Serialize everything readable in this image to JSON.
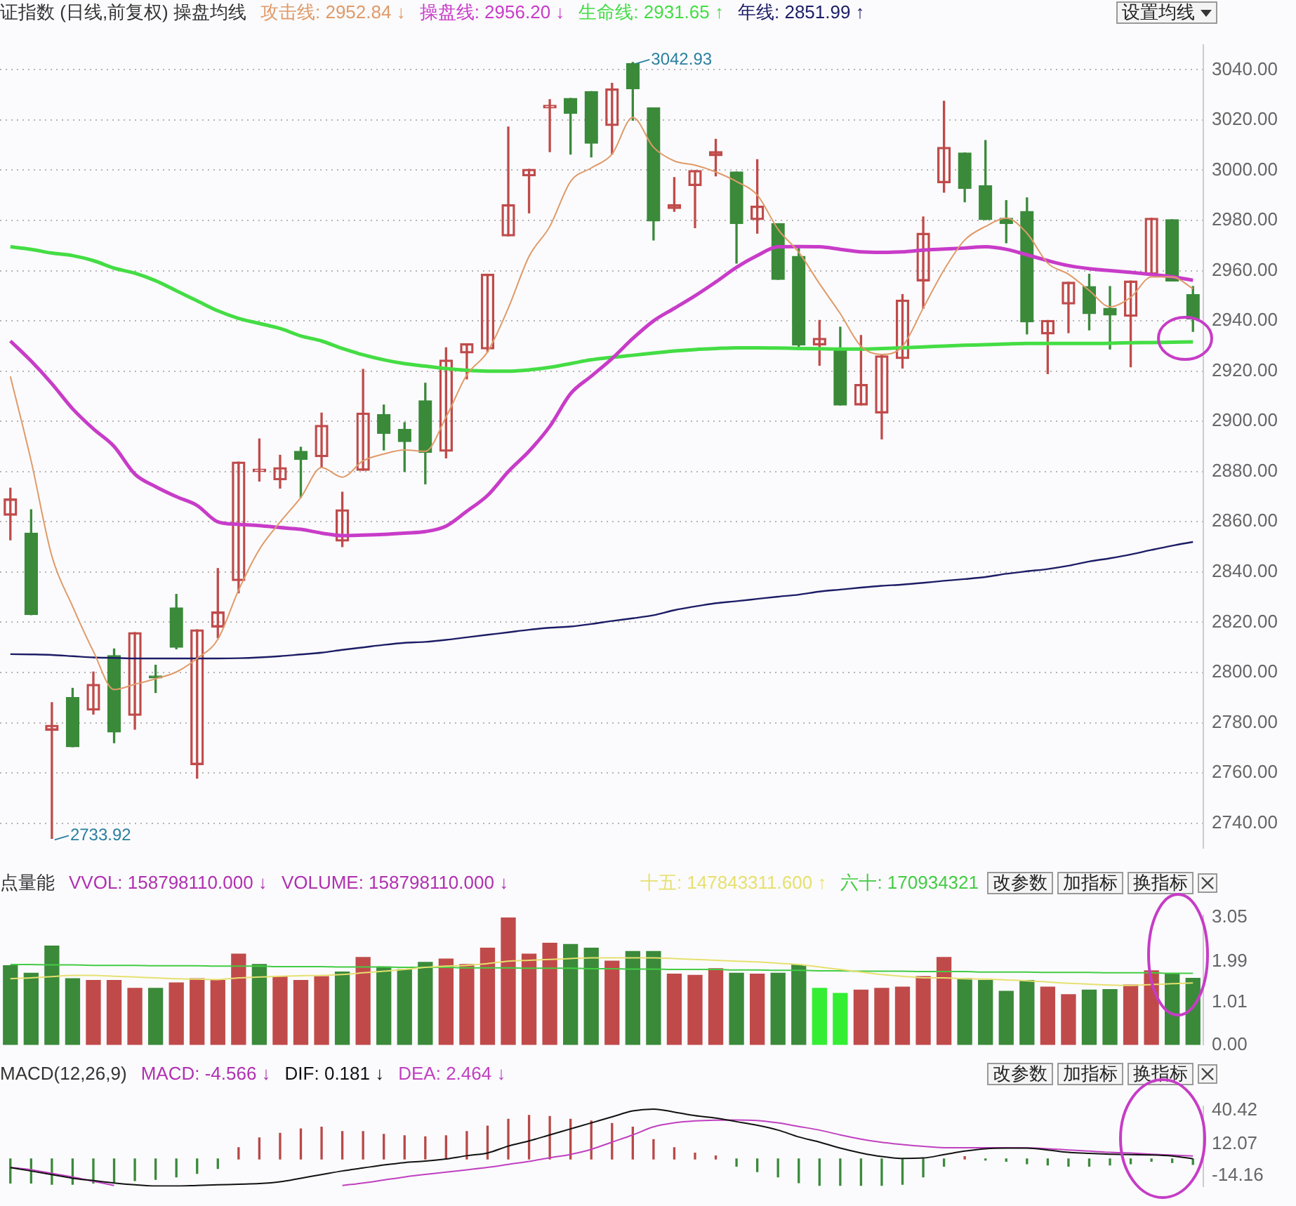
{
  "chart_data": [
    {
      "type": "candlestick",
      "title": "证指数 (日线,前复权) 操盘均线",
      "legend": "top left",
      "tick_labels": "y",
      "grid": "y",
      "categories": [
        null,
        null,
        null,
        null,
        null,
        null,
        null,
        null,
        null,
        null,
        null,
        null,
        null,
        null,
        null,
        null,
        null,
        null,
        null,
        null,
        null,
        null,
        null,
        null,
        null,
        null,
        null,
        null,
        null,
        null,
        null,
        null,
        null,
        null,
        null,
        null,
        null,
        null,
        null,
        null,
        null,
        null,
        null,
        null,
        null,
        null,
        null,
        null,
        null,
        null,
        null,
        null,
        null,
        null,
        null,
        null,
        null,
        null
      ],
      "ohlc": [
        [
          2862.6,
          2873.4,
          2852.8,
          2869.1
        ],
        [
          2855.5,
          2864.8,
          2823,
          2823
        ],
        [
          2777,
          2788,
          2733.92,
          2779
        ],
        [
          2790,
          2793.7,
          2770.4,
          2770.4
        ],
        [
          2785,
          2800.2,
          2783.4,
          2795.3
        ],
        [
          2806.7,
          2809.4,
          2772,
          2776.3
        ],
        [
          2782.9,
          2815.9,
          2777.4,
          2815.9
        ],
        [
          2798.6,
          2802.9,
          2792,
          2797.8
        ],
        [
          2825.7,
          2831.1,
          2809.4,
          2810
        ],
        [
          2763.3,
          2817,
          2757.9,
          2817
        ],
        [
          2818.1,
          2841.4,
          2813.8,
          2824.1
        ],
        [
          2836.6,
          2883.8,
          2831.7,
          2883.8
        ],
        [
          2880,
          2893,
          2876.2,
          2881
        ],
        [
          2876.7,
          2886.5,
          2873.4,
          2881.6
        ],
        [
          2888.1,
          2889.7,
          2869.7,
          2884.8
        ],
        [
          2885.9,
          2903.3,
          2881.6,
          2898.4
        ],
        [
          2852.3,
          2871.8,
          2850.1,
          2864.8
        ],
        [
          2880.5,
          2920.7,
          2880.5,
          2903.3
        ],
        [
          2902.7,
          2906.5,
          2888.6,
          2895.2
        ],
        [
          2896.8,
          2899.5,
          2880,
          2891.9
        ],
        [
          2908.2,
          2915.2,
          2875.1,
          2887.6
        ],
        [
          2888.1,
          2929.3,
          2885.4,
          2924.4
        ],
        [
          2927.2,
          2930.9,
          2916.9,
          2930.9
        ],
        [
          2928.8,
          2958.6,
          2927.7,
          2958.6
        ],
        [
          2973.8,
          3017.2,
          2973.8,
          2986.3
        ],
        [
          2997.7,
          3000.4,
          2983,
          3000.4
        ],
        [
          3024.8,
          3028.1,
          3007.4,
          3025.9
        ],
        [
          3028.6,
          3028.6,
          3006.4,
          3022.6
        ],
        [
          3031.3,
          3031.3,
          3005.3,
          3010.7
        ],
        [
          3017.8,
          3034.6,
          3006.4,
          3032.4
        ],
        [
          3042.5,
          3042.93,
          3019.9,
          3032.4
        ],
        [
          3024.8,
          3024.8,
          2972.2,
          2979.8
        ],
        [
          2984.7,
          2997.1,
          2983.6,
          2986.3
        ],
        [
          2993.9,
          2999.9,
          2977.1,
          2999.9
        ],
        [
          3005.8,
          3012.3,
          2997.7,
          3007.4
        ],
        [
          2999.3,
          2999.3,
          2963,
          2978.7
        ],
        [
          2980.3,
          3004.2,
          2974.9,
          2985.7
        ],
        [
          2978.7,
          2978.7,
          2956.5,
          2956.5
        ],
        [
          2965.7,
          2970,
          2929.3,
          2930.4
        ],
        [
          2930.4,
          2940.2,
          2922.3,
          2933.1
        ],
        [
          2928.8,
          2937.5,
          2906.5,
          2906.5
        ],
        [
          2906.5,
          2934.2,
          2906.5,
          2914.7
        ],
        [
          2903.3,
          2926.6,
          2893,
          2926.1
        ],
        [
          2925,
          2950.5,
          2921.2,
          2948.3
        ],
        [
          2955.9,
          2981.4,
          2945,
          2974.9
        ],
        [
          2995,
          3027.5,
          2991.2,
          3009.1
        ],
        [
          3006.9,
          3006.9,
          2987.4,
          2992.8
        ],
        [
          2993.9,
          3011.8,
          2980.3,
          2980.3
        ],
        [
          2980.9,
          2987.9,
          2971.1,
          2978.7
        ],
        [
          2983.6,
          2989,
          2934.8,
          2939.6
        ],
        [
          2934.8,
          2940.2,
          2919,
          2940.2
        ],
        [
          2946.7,
          2955.4,
          2935.3,
          2955.4
        ],
        [
          2953.7,
          2958.6,
          2936.4,
          2942.9
        ],
        [
          2945,
          2953.7,
          2928.8,
          2942.3
        ],
        [
          2941.8,
          2955.9,
          2921.7,
          2955.9
        ],
        [
          2958.6,
          2980.9,
          2958.6,
          2980.9
        ],
        [
          2980.3,
          2980.3,
          2955.9,
          2955.9
        ],
        [
          2950.5,
          2953.7,
          2935.8,
          2940.7
        ]
      ],
      "colors": [
        "#c04a4a",
        "#3a8a3a",
        "#c04a4a",
        "#3a8a3a",
        "#c04a4a",
        "#3a8a3a",
        "#c04a4a",
        "#3a8a3a",
        "#3a8a3a",
        "#c04a4a",
        "#c04a4a",
        "#c04a4a",
        "#c04a4a",
        "#c04a4a",
        "#3a8a3a",
        "#c04a4a",
        "#c04a4a",
        "#c04a4a",
        "#3a8a3a",
        "#3a8a3a",
        "#3a8a3a",
        "#c04a4a",
        "#c04a4a",
        "#c04a4a",
        "#c04a4a",
        "#c04a4a",
        "#c04a4a",
        "#3a8a3a",
        "#3a8a3a",
        "#c04a4a",
        "#3a8a3a",
        "#3a8a3a",
        "#c04a4a",
        "#c04a4a",
        "#c04a4a",
        "#3a8a3a",
        "#c04a4a",
        "#3a8a3a",
        "#3a8a3a",
        "#c04a4a",
        "#3a8a3a",
        "#c04a4a",
        "#c04a4a",
        "#c04a4a",
        "#c04a4a",
        "#c04a4a",
        "#3a8a3a",
        "#3a8a3a",
        "#3a8a3a",
        "#3a8a3a",
        "#c04a4a",
        "#c04a4a",
        "#3a8a3a",
        "#3a8a3a",
        "#c04a4a",
        "#c04a4a",
        "#3a8a3a",
        "#3a8a3a"
      ],
      "series": [
        {
          "name": "攻击线: 2952.84 ↓",
          "type": "line",
          "color": "#e09a68",
          "values": [
            2917.9,
            2884.3,
            2846.3,
            2826.3,
            2808.4,
            2793.2,
            2795.3,
            2797.5,
            2800.2,
            2805.6,
            2813.2,
            2832.8,
            2849,
            2859.9,
            2869.7,
            2881.6,
            2877.8,
            2884.3,
            2887,
            2888.6,
            2888.1,
            2901.7,
            2918.5,
            2927.7,
            2945.1,
            2965.7,
            2977.6,
            2995.5,
            3000.9,
            3006.4,
            3021,
            3009.1,
            3003.7,
            3002,
            2999.3,
            2995.5,
            2990.1,
            2976.5,
            2967.3,
            2954.8,
            2942.9,
            2929.9,
            2926.6,
            2929.9,
            2945.1,
            2960.3,
            2972.2,
            2977.6,
            2980.9,
            2974.9,
            2963,
            2958.6,
            2952.1,
            2945.6,
            2949.4,
            2957.5,
            2957.5,
            2952.84
          ]
        },
        {
          "name": "操盘线: 2956.20 ↓",
          "type": "line",
          "color": "#c83cc8",
          "values": [
            2932,
            2924,
            2915,
            2905,
            2897,
            2890,
            2879,
            2874,
            2870,
            2866.5,
            2860,
            2859,
            2858.5,
            2857.7,
            2857,
            2855.5,
            2854.5,
            2854.7,
            2855,
            2855.5,
            2856.1,
            2858.3,
            2864.2,
            2870.5,
            2880,
            2888.1,
            2898,
            2911,
            2918,
            2925,
            2933,
            2940,
            2945,
            2950,
            2955.5,
            2961.3,
            2966,
            2969.5,
            2969.6,
            2969.5,
            2968.5,
            2967.5,
            2967.3,
            2967.5,
            2968.2,
            2968.6,
            2969,
            2969.5,
            2968.5,
            2966.3,
            2964,
            2962,
            2960.8,
            2960,
            2959.3,
            2958.5,
            2957.6,
            2956.2
          ]
        },
        {
          "name": "生命线: 2931.65 ↑",
          "type": "line",
          "color": "#44dd44",
          "values": [
            2969.5,
            2968.5,
            2967,
            2966,
            2964,
            2961,
            2959,
            2956,
            2952,
            2948,
            2944,
            2941,
            2939,
            2937,
            2934,
            2932,
            2929,
            2926.5,
            2924.5,
            2923,
            2922,
            2921,
            2920.3,
            2920,
            2920,
            2920.5,
            2921.5,
            2923,
            2924.5,
            2925.5,
            2926.3,
            2927.2,
            2928,
            2928.6,
            2929,
            2929.3,
            2929.3,
            2929.2,
            2929,
            2928.9,
            2928.8,
            2928.8,
            2929,
            2929.3,
            2929.6,
            2930,
            2930.3,
            2930.5,
            2930.8,
            2931,
            2931,
            2931,
            2931,
            2931.1,
            2931.3,
            2931.4,
            2931.5,
            2931.65
          ]
        },
        {
          "name": "年线: 2851.99 ↑",
          "type": "line",
          "color": "#1c1c66",
          "values": [
            2807.3,
            2807.2,
            2807,
            2806.5,
            2806,
            2805.8,
            2805.6,
            2805.6,
            2805.6,
            2805.6,
            2805.6,
            2805.7,
            2806,
            2806.5,
            2807.2,
            2807.9,
            2809,
            2810,
            2811,
            2811.8,
            2812.2,
            2813,
            2814,
            2815,
            2816,
            2817,
            2817.8,
            2818.3,
            2819.3,
            2820.5,
            2821.6,
            2822.8,
            2824.8,
            2826.3,
            2827.6,
            2828.4,
            2829.3,
            2830.2,
            2831,
            2832.2,
            2833,
            2833.8,
            2834.5,
            2835,
            2835.7,
            2836.5,
            2837.2,
            2838,
            2839.3,
            2840.3,
            2841.2,
            2842.5,
            2844.2,
            2845.5,
            2847,
            2848.8,
            2850.5,
            2851.99
          ]
        }
      ],
      "ylim": [
        2730,
        3050
      ],
      "yticks": [
        {
          "value": 2740,
          "label": "2740.00"
        },
        {
          "value": 2760,
          "label": "2760.00"
        },
        {
          "value": 2780,
          "label": "2780.00"
        },
        {
          "value": 2800,
          "label": "2800.00"
        },
        {
          "value": 2820,
          "label": "2820.00"
        },
        {
          "value": 2840,
          "label": "2840.00"
        },
        {
          "value": 2860,
          "label": "2860.00"
        },
        {
          "value": 2880,
          "label": "2880.00"
        },
        {
          "value": 2900,
          "label": "2900.00"
        },
        {
          "value": 2920,
          "label": "2920.00"
        },
        {
          "value": 2940,
          "label": "2940.00"
        },
        {
          "value": 2960,
          "label": "2960.00"
        },
        {
          "value": 2980,
          "label": "2980.00"
        },
        {
          "value": 3000,
          "label": "3000.00"
        },
        {
          "value": 3020,
          "label": "3020.00"
        },
        {
          "value": 3040,
          "label": "3040.00"
        }
      ],
      "annotations": [
        "3042.93",
        "2733.92",
        "设置均线"
      ]
    },
    {
      "type": "bar",
      "title": "点量能",
      "legend": "top right",
      "tick_labels": "y",
      "categories": [
        null,
        null,
        null,
        null,
        null,
        null,
        null,
        null,
        null,
        null,
        null,
        null,
        null,
        null,
        null,
        null,
        null,
        null,
        null,
        null,
        null,
        null,
        null,
        null,
        null,
        null,
        null,
        null,
        null,
        null,
        null,
        null,
        null,
        null,
        null,
        null,
        null,
        null,
        null,
        null,
        null,
        null,
        null,
        null,
        null,
        null,
        null,
        null,
        null,
        null,
        null,
        null,
        null,
        null,
        null,
        null,
        null,
        null
      ],
      "series": [
        {
          "type": "bar",
          "colors": [
            "#3a8a3a",
            "#3a8a3a",
            "#3a8a3a",
            "#3a8a3a",
            "#c04a4a",
            "#c04a4a",
            "#c04a4a",
            "#3a8a3a",
            "#c04a4a",
            "#c04a4a",
            "#c04a4a",
            "#c04a4a",
            "#3a8a3a",
            "#c04a4a",
            "#c04a4a",
            "#c04a4a",
            "#3a8a3a",
            "#c04a4a",
            "#3a8a3a",
            "#3a8a3a",
            "#3a8a3a",
            "#c04a4a",
            "#c04a4a",
            "#c04a4a",
            "#c04a4a",
            "#c04a4a",
            "#c04a4a",
            "#3a8a3a",
            "#3a8a3a",
            "#c04a4a",
            "#3a8a3a",
            "#3a8a3a",
            "#c04a4a",
            "#c04a4a",
            "#c04a4a",
            "#3a8a3a",
            "#c04a4a",
            "#3a8a3a",
            "#3a8a3a",
            "#33ee33",
            "#33ee33",
            "#c04a4a",
            "#c04a4a",
            "#c04a4a",
            "#c04a4a",
            "#c04a4a",
            "#3a8a3a",
            "#3a8a3a",
            "#3a8a3a",
            "#3a8a3a",
            "#c04a4a",
            "#c04a4a",
            "#3a8a3a",
            "#3a8a3a",
            "#c04a4a",
            "#c04a4a",
            "#3a8a3a",
            "#3a8a3a"
          ],
          "values": [
            1.89,
            1.71,
            2.36,
            1.58,
            1.54,
            1.54,
            1.35,
            1.35,
            1.48,
            1.58,
            1.54,
            2.17,
            1.92,
            1.63,
            1.54,
            1.63,
            1.74,
            2.09,
            1.86,
            1.8,
            1.97,
            2.05,
            1.92,
            2.31,
            3.03,
            2.17,
            2.43,
            2.4,
            2.31,
            2,
            2.23,
            2.23,
            1.69,
            1.66,
            1.82,
            1.71,
            1.69,
            1.71,
            1.91,
            1.35,
            1.23,
            1.31,
            1.35,
            1.38,
            1.63,
            2.09,
            1.58,
            1.54,
            1.28,
            1.54,
            1.38,
            1.2,
            1.31,
            1.32,
            1.43,
            1.77,
            1.69,
            1.59
          ]
        },
        {
          "name": "十五: 147843311.600 ↑",
          "type": "line",
          "color": "#e6e070",
          "values": [
            1.58,
            1.6,
            1.63,
            1.66,
            1.66,
            1.64,
            1.62,
            1.6,
            1.58,
            1.57,
            1.56,
            1.6,
            1.62,
            1.64,
            1.65,
            1.66,
            1.68,
            1.72,
            1.76,
            1.8,
            1.85,
            1.88,
            1.9,
            1.94,
            2,
            2.02,
            2.04,
            2.06,
            2.08,
            2.08,
            2.08,
            2.08,
            2.06,
            2.04,
            2.02,
            2,
            1.98,
            1.95,
            1.92,
            1.86,
            1.8,
            1.74,
            1.68,
            1.64,
            1.6,
            1.6,
            1.58,
            1.57,
            1.55,
            1.53,
            1.5,
            1.47,
            1.45,
            1.43,
            1.42,
            1.44,
            1.46,
            1.48
          ]
        },
        {
          "name": "六十: 170934321",
          "type": "line",
          "color": "#44cc44",
          "values": [
            1.92,
            1.92,
            1.91,
            1.91,
            1.9,
            1.9,
            1.9,
            1.89,
            1.89,
            1.89,
            1.88,
            1.88,
            1.88,
            1.87,
            1.87,
            1.87,
            1.86,
            1.86,
            1.86,
            1.85,
            1.85,
            1.85,
            1.84,
            1.84,
            1.84,
            1.83,
            1.83,
            1.83,
            1.82,
            1.82,
            1.81,
            1.81,
            1.8,
            1.8,
            1.8,
            1.79,
            1.79,
            1.78,
            1.78,
            1.77,
            1.77,
            1.76,
            1.76,
            1.76,
            1.75,
            1.75,
            1.75,
            1.74,
            1.74,
            1.74,
            1.73,
            1.73,
            1.73,
            1.72,
            1.72,
            1.72,
            1.71,
            1.71
          ]
        }
      ],
      "ylim": [
        0,
        3.1
      ],
      "yticks": [
        {
          "value": 0,
          "label": "0.00"
        },
        {
          "value": 1.01,
          "label": "1.01"
        },
        {
          "value": 1.99,
          "label": "1.99"
        },
        {
          "value": 3.05,
          "label": "3.05"
        }
      ],
      "annotations": [
        "VVOL: 158798110.000 ↓",
        "VOLUME: 158798110.000 ↓",
        "改参数",
        "加指标",
        "换指标"
      ]
    },
    {
      "type": "bar",
      "title": "MACD(12,26,9)",
      "legend": "top left",
      "tick_labels": "y",
      "categories": [
        null,
        null,
        null,
        null,
        null,
        null,
        null,
        null,
        null,
        null,
        null,
        null,
        null,
        null,
        null,
        null,
        null,
        null,
        null,
        null,
        null,
        null,
        null,
        null,
        null,
        null,
        null,
        null,
        null,
        null,
        null,
        null,
        null,
        null,
        null,
        null,
        null,
        null,
        null,
        null,
        null,
        null,
        null,
        null,
        null,
        null,
        null,
        null,
        null,
        null,
        null,
        null,
        null,
        null,
        null,
        null,
        null,
        null
      ],
      "series": [
        {
          "type": "bar",
          "colors": [
            "#3a8a3a",
            "#3a8a3a",
            "#3a8a3a",
            "#3a8a3a",
            "#3a8a3a",
            "#3a8a3a",
            "#3a8a3a",
            "#3a8a3a",
            "#3a8a3a",
            "#3a8a3a",
            "#3a8a3a",
            "#b84848",
            "#b84848",
            "#b84848",
            "#b84848",
            "#b84848",
            "#b84848",
            "#b84848",
            "#b84848",
            "#b84848",
            "#b84848",
            "#b84848",
            "#b84848",
            "#b84848",
            "#b84848",
            "#b84848",
            "#b84848",
            "#b84848",
            "#b84848",
            "#b84848",
            "#b84848",
            "#b84848",
            "#b84848",
            "#b84848",
            "#b84848",
            "#3a8a3a",
            "#3a8a3a",
            "#3a8a3a",
            "#3a8a3a",
            "#3a8a3a",
            "#3a8a3a",
            "#3a8a3a",
            "#3a8a3a",
            "#3a8a3a",
            "#3a8a3a",
            "#3a8a3a",
            "#b84848",
            "#3a8a3a",
            "#3a8a3a",
            "#3a8a3a",
            "#3a8a3a",
            "#3a8a3a",
            "#3a8a3a",
            "#3a8a3a",
            "#3a8a3a",
            "#3a8a3a",
            "#3a8a3a",
            "#3a8a3a"
          ],
          "values": [
            -20,
            -20,
            -21,
            -21,
            -20,
            -19,
            -18,
            -17,
            -15,
            -12,
            -8,
            9.4,
            17.5,
            21.4,
            25,
            26.4,
            22.8,
            22.8,
            20.5,
            19.3,
            18.5,
            19.3,
            22.8,
            27.4,
            33,
            36.2,
            35.4,
            33,
            31.6,
            29.5,
            26.4,
            16.1,
            9.4,
            4.9,
            2.5,
            -6,
            -10.6,
            -15,
            -19.8,
            -22,
            -22,
            -22,
            -22,
            -21,
            -15,
            -6,
            2,
            -1,
            -2,
            -4,
            -5,
            -6,
            -6,
            -5,
            -4,
            -2,
            -3,
            -4.566
          ]
        },
        {
          "name": "DIF: 0.181 ↓",
          "type": "line",
          "color": "#111111",
          "values": [
            -7.2,
            -10,
            -13,
            -16,
            -18,
            -20,
            -21.5,
            -22.5,
            -22.5,
            -22,
            -21.5,
            -21,
            -20.5,
            -19,
            -16,
            -13,
            -10,
            -7.5,
            -5,
            -3,
            -1.8,
            0,
            2.7,
            5,
            10.7,
            15,
            20,
            25,
            30,
            35,
            40,
            41.5,
            39,
            36,
            34,
            31,
            28,
            24,
            18.3,
            14,
            9,
            5,
            2,
            0.5,
            0.8,
            3.6,
            6.5,
            8.5,
            9,
            9,
            7.5,
            5.5,
            4.6,
            4,
            3.6,
            3.4,
            2.5,
            0.181
          ]
        },
        {
          "name": "DEA: 2.464 ↓",
          "type": "line",
          "color": "#c040c0",
          "values": [
            -7,
            -9,
            -12,
            -15,
            -18.5,
            -22,
            null,
            null,
            null,
            null,
            null,
            null,
            null,
            null,
            null,
            null,
            -22,
            -20,
            -17.5,
            -15,
            -12.9,
            -11,
            -9,
            -7,
            -4.5,
            -2,
            1,
            3.8,
            8,
            14,
            20,
            26.7,
            30,
            31.6,
            32.3,
            32.4,
            32,
            30,
            27,
            24,
            20,
            16.5,
            13.8,
            12,
            10.5,
            9.4,
            9.3,
            9.3,
            9.3,
            9.2,
            8.5,
            7.5,
            6.5,
            5.5,
            4.9,
            4,
            3.2,
            2.464
          ]
        }
      ],
      "ylim": [
        -23,
        44
      ],
      "yticks": [
        40.42,
        12.07,
        -14.16
      ],
      "annotations": [
        "MACD: -4.566 ↓",
        "改参数",
        "加指标",
        "换指标"
      ]
    }
  ]
}
